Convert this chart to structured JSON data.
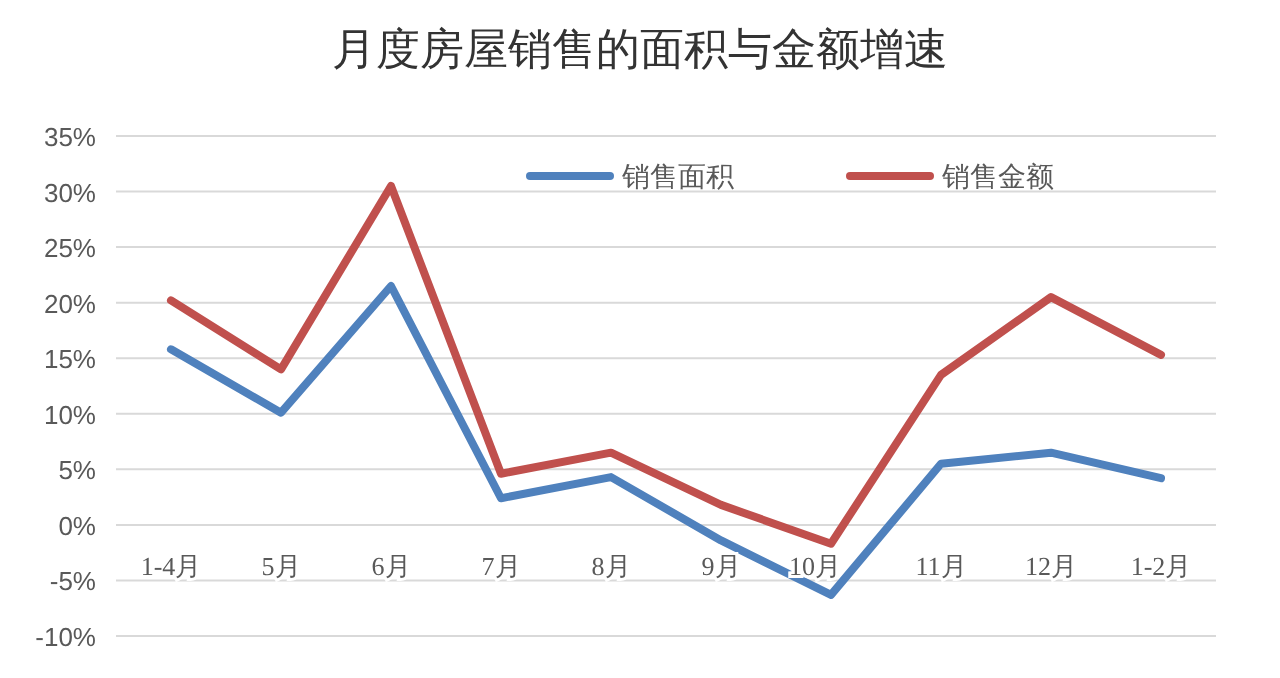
{
  "chart_data": {
    "type": "line",
    "title": "月度房屋销售的面积与金额增速",
    "categories": [
      "1-4月",
      "5月",
      "6月",
      "7月",
      "8月",
      "9月",
      "10月",
      "11月",
      "12月",
      "1-2月"
    ],
    "series": [
      {
        "name": "销售面积",
        "color": "#4f81bd",
        "values": [
          15.8,
          10.1,
          21.5,
          2.4,
          4.3,
          -1.4,
          -6.3,
          5.5,
          6.5,
          4.2
        ]
      },
      {
        "name": "销售金额",
        "color": "#c0504d",
        "values": [
          20.2,
          14.0,
          30.5,
          4.6,
          6.5,
          1.8,
          -1.7,
          13.5,
          20.5,
          15.3
        ]
      }
    ],
    "ylim": [
      -10,
      35
    ],
    "yticks": [
      {
        "value": -10,
        "label": "-10%"
      },
      {
        "value": -5,
        "label": "-5%"
      },
      {
        "value": 0,
        "label": "0%"
      },
      {
        "value": 5,
        "label": "5%"
      },
      {
        "value": 10,
        "label": "10%"
      },
      {
        "value": 15,
        "label": "15%"
      },
      {
        "value": 20,
        "label": "20%"
      },
      {
        "value": 25,
        "label": "25%"
      },
      {
        "value": 30,
        "label": "30%"
      },
      {
        "value": 35,
        "label": "35%"
      }
    ],
    "grid": "y",
    "legend": "top",
    "marker": "none",
    "line_style": "solid"
  }
}
